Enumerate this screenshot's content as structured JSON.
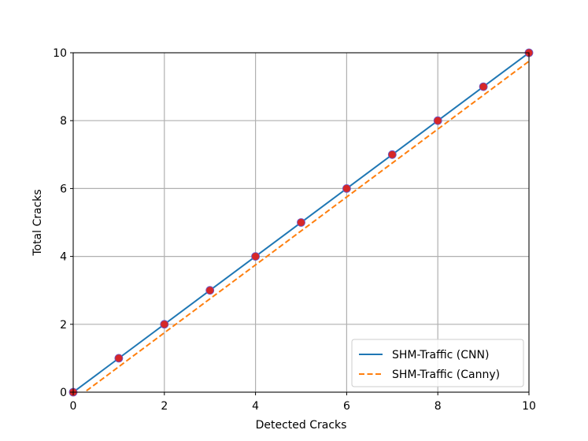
{
  "chart_data": {
    "type": "line",
    "title": "",
    "xlabel": "Detected Cracks",
    "ylabel": "Total Cracks",
    "xlim": [
      0,
      10
    ],
    "ylim": [
      0,
      10
    ],
    "xticks": [
      "0",
      "2",
      "4",
      "6",
      "8",
      "10"
    ],
    "yticks": [
      "0",
      "2",
      "4",
      "6",
      "8",
      "10"
    ],
    "grid": true,
    "legend_position": "lower-right",
    "points": {
      "x": [
        0,
        1,
        2,
        3,
        4,
        5,
        6,
        7,
        8,
        9,
        10
      ],
      "y": [
        0,
        1,
        2,
        3,
        4,
        5,
        6,
        7,
        8,
        9,
        10
      ],
      "color": "#d62728",
      "edge_color": "#6a5acd"
    },
    "series": [
      {
        "name": "SHM-Traffic (CNN)",
        "x": [
          0,
          10
        ],
        "y": [
          0,
          10
        ],
        "color": "#1f77b4",
        "style": "solid"
      },
      {
        "name": "SHM-Traffic (Canny)",
        "x": [
          0,
          10
        ],
        "y": [
          -0.25,
          9.75
        ],
        "color": "#ff7f0e",
        "style": "dashed"
      }
    ]
  }
}
